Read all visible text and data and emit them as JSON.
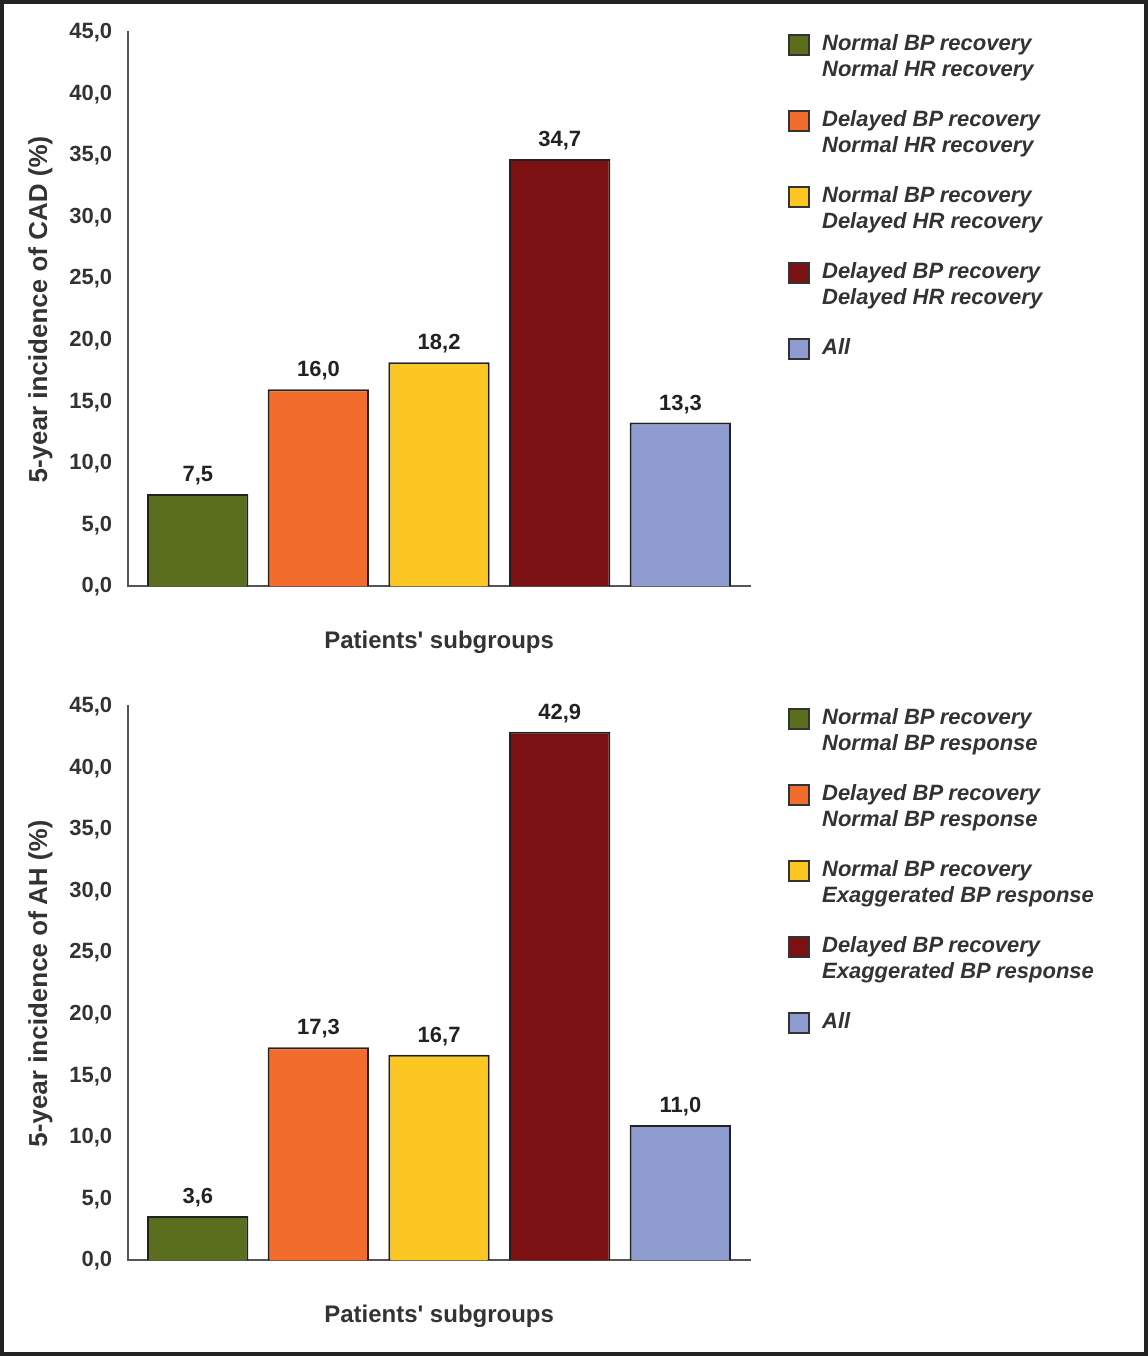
{
  "chart_data": [
    {
      "type": "bar",
      "ylabel": "5-year incidence of CAD (%)",
      "xlabel": "Patients' subgroups",
      "categories": [
        null
      ],
      "legend": "right",
      "ylim": [
        0,
        45
      ],
      "yticks": [
        {
          "value": 0,
          "label": "0,0"
        },
        {
          "value": 5,
          "label": "5,0"
        },
        {
          "value": 10,
          "label": "10,0"
        },
        {
          "value": 15,
          "label": "15,0"
        },
        {
          "value": 20,
          "label": "20,0"
        },
        {
          "value": 25,
          "label": "25,0"
        },
        {
          "value": 30,
          "label": "30,0"
        },
        {
          "value": 35,
          "label": "35,0"
        },
        {
          "value": 40,
          "label": "40,0"
        },
        {
          "value": 45,
          "label": "45,0"
        }
      ],
      "series": [
        {
          "name": "Normal BP recovery\nNormal HR recovery",
          "color": "#5a6e1e",
          "values": [
            7.5
          ],
          "value_labels": [
            "7,5"
          ]
        },
        {
          "name": "Delayed BP recovery\nNormal HR recovery",
          "color": "#f26c2e",
          "values": [
            16.0
          ],
          "value_labels": [
            "16,0"
          ]
        },
        {
          "name": "Normal BP recovery\nDelayed HR recovery",
          "color": "#fcc723",
          "values": [
            18.2
          ],
          "value_labels": [
            "18,2"
          ]
        },
        {
          "name": "Delayed BP recovery\nDelayed HR recovery",
          "color": "#7b1113",
          "values": [
            34.7
          ],
          "value_labels": [
            "34,7"
          ]
        },
        {
          "name": "All",
          "color": "#8f9cd0",
          "values": [
            13.3
          ],
          "value_labels": [
            "13,3"
          ]
        }
      ]
    },
    {
      "type": "bar",
      "ylabel": "5-year incidence of AH (%)",
      "xlabel": "Patients' subgroups",
      "categories": [
        null
      ],
      "legend": "right",
      "ylim": [
        0,
        45
      ],
      "yticks": [
        {
          "value": 0,
          "label": "0,0"
        },
        {
          "value": 5,
          "label": "5,0"
        },
        {
          "value": 10,
          "label": "10,0"
        },
        {
          "value": 15,
          "label": "15,0"
        },
        {
          "value": 20,
          "label": "20,0"
        },
        {
          "value": 25,
          "label": "25,0"
        },
        {
          "value": 30,
          "label": "30,0"
        },
        {
          "value": 35,
          "label": "35,0"
        },
        {
          "value": 40,
          "label": "40,0"
        },
        {
          "value": 45,
          "label": "45,0"
        }
      ],
      "series": [
        {
          "name": "Normal BP recovery\nNormal BP response",
          "color": "#5a6e1e",
          "values": [
            3.6
          ],
          "value_labels": [
            "3,6"
          ]
        },
        {
          "name": "Delayed BP recovery\nNormal BP response",
          "color": "#f26c2e",
          "values": [
            17.3
          ],
          "value_labels": [
            "17,3"
          ]
        },
        {
          "name": "Normal BP recovery\nExaggerated BP response",
          "color": "#fcc723",
          "values": [
            16.7
          ],
          "value_labels": [
            "16,7"
          ]
        },
        {
          "name": "Delayed BP recovery\nExaggerated BP response",
          "color": "#7b1113",
          "values": [
            42.9
          ],
          "value_labels": [
            "42,9"
          ]
        },
        {
          "name": "All",
          "color": "#8f9cd0",
          "values": [
            11.0
          ],
          "value_labels": [
            "11,0"
          ]
        }
      ]
    }
  ]
}
